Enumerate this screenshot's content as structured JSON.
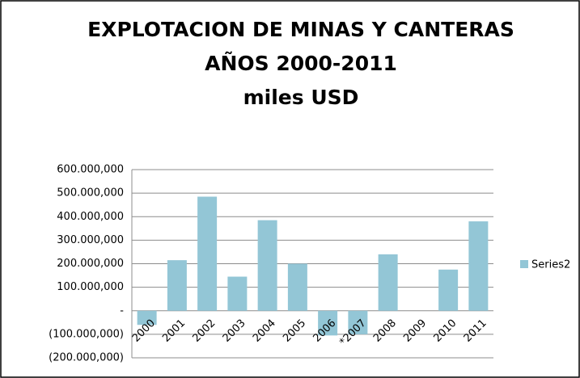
{
  "chart_data": {
    "type": "bar",
    "title": [
      "EXPLOTACION DE MINAS Y CANTERAS",
      "AÑOS 2000-2011",
      "miles USD"
    ],
    "categories": [
      "2000",
      "2001",
      "2002",
      "2003",
      "2004",
      "2005",
      "2006",
      "*2007",
      "2008",
      "2009",
      "2010",
      "2011"
    ],
    "series": [
      {
        "name": "Series2",
        "color": "#93c6d6",
        "values": [
          -60000000,
          215000000,
          485000000,
          145000000,
          385000000,
          200000000,
          -105000000,
          -100000000,
          240000000,
          0,
          175000000,
          380000000
        ]
      }
    ],
    "ylim": [
      -200000000,
      600000000
    ],
    "yticks": [
      {
        "value": -200000000,
        "label": "(200.000,000)"
      },
      {
        "value": -100000000,
        "label": "(100.000,000)"
      },
      {
        "value": 0,
        "label": "-"
      },
      {
        "value": 100000000,
        "label": "100.000,000"
      },
      {
        "value": 200000000,
        "label": "200.000,000"
      },
      {
        "value": 300000000,
        "label": "300.000,000"
      },
      {
        "value": 400000000,
        "label": "400.000,000"
      },
      {
        "value": 500000000,
        "label": "500.000,000"
      },
      {
        "value": 600000000,
        "label": "600.000,000"
      }
    ],
    "grid": true,
    "legend": "right"
  }
}
